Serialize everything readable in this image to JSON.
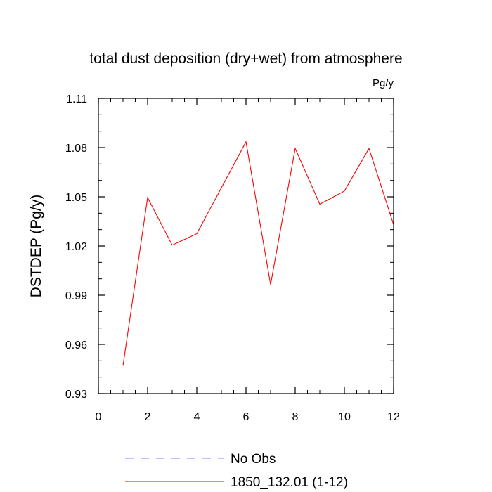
{
  "chart_data": {
    "type": "line",
    "title": "total dust deposition (dry+wet) from atmosphere",
    "units": "Pg/y",
    "ylabel": "DSTDEP  (Pg/y)",
    "xlabel": "",
    "xlim": [
      0,
      12
    ],
    "ylim": [
      0.93,
      1.11
    ],
    "xticks": [
      0,
      2,
      4,
      6,
      8,
      10,
      12
    ],
    "xtick_labels": [
      "0",
      "2",
      "4",
      "6",
      "8",
      "10",
      "12"
    ],
    "yticks": [
      0.93,
      0.96,
      0.99,
      1.02,
      1.05,
      1.08,
      1.11
    ],
    "ytick_labels": [
      "0.93",
      "0.96",
      "0.99",
      "1.02",
      "1.05",
      "1.08",
      "1.11"
    ],
    "grid": false,
    "legend_position": "bottom",
    "series": [
      {
        "name": "No Obs",
        "color": "#8080ff",
        "style": "dashed",
        "x": [],
        "y": []
      },
      {
        "name": "1850_132.01 (1-12)",
        "color": "#ff0000",
        "style": "solid",
        "x": [
          1,
          2,
          3,
          4,
          5,
          6,
          7,
          8,
          9,
          10,
          11,
          12
        ],
        "y": [
          0.947,
          1.0495,
          1.0205,
          1.0275,
          1.0555,
          1.0835,
          0.9965,
          1.0795,
          1.0455,
          1.0535,
          1.0795,
          1.033
        ]
      }
    ]
  }
}
